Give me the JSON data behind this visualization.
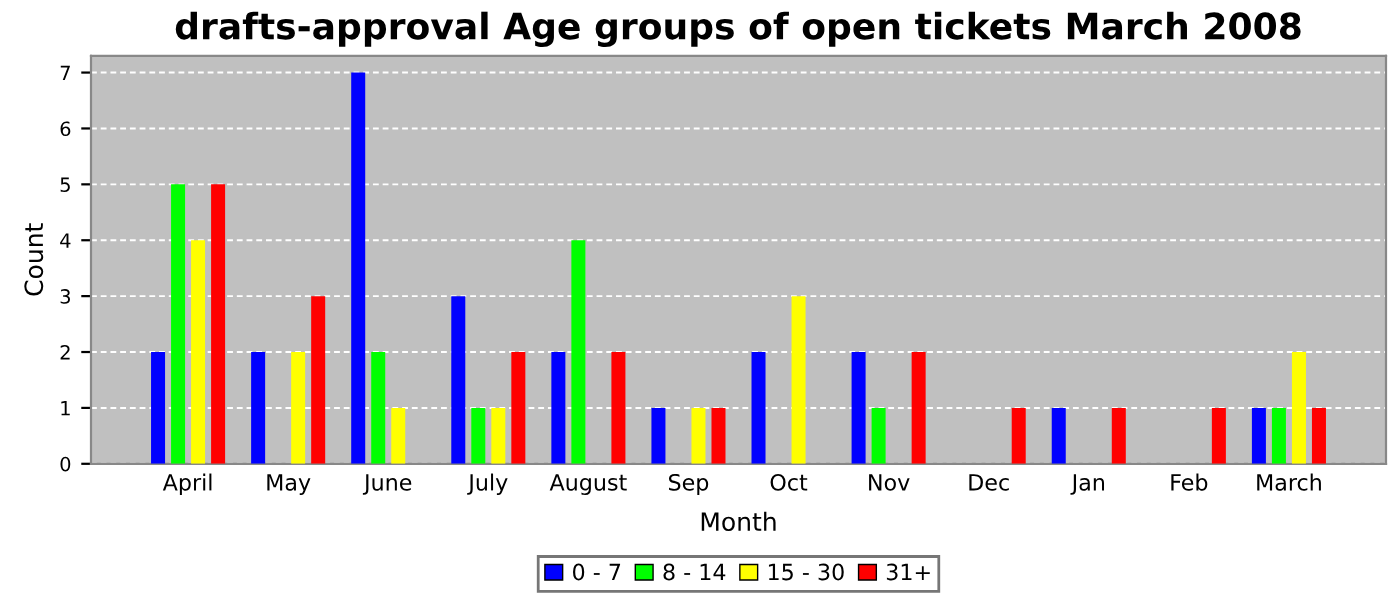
{
  "chart_data": {
    "type": "bar",
    "title": "drafts-approval Age groups of open tickets March 2008",
    "xlabel": "Month",
    "ylabel": "Count",
    "categories": [
      "April",
      "May",
      "June",
      "July",
      "August",
      "Sep",
      "Oct",
      "Nov",
      "Dec",
      "Jan",
      "Feb",
      "March"
    ],
    "series": [
      {
        "name": "0 - 7",
        "color": "#0000ff",
        "values": [
          2,
          2,
          7,
          3,
          2,
          1,
          2,
          2,
          0,
          1,
          0,
          1
        ]
      },
      {
        "name": "8 - 14",
        "color": "#00ff00",
        "values": [
          5,
          0,
          2,
          1,
          4,
          0,
          0,
          1,
          0,
          0,
          0,
          1
        ]
      },
      {
        "name": "15 - 30",
        "color": "#ffff00",
        "values": [
          4,
          2,
          1,
          1,
          0,
          1,
          3,
          0,
          0,
          0,
          0,
          2
        ]
      },
      {
        "name": "31+",
        "color": "#ff0000",
        "values": [
          5,
          3,
          0,
          2,
          2,
          1,
          0,
          2,
          1,
          1,
          1,
          1
        ]
      }
    ],
    "ylim": [
      0,
      7.3
    ],
    "yticks": [
      0,
      1,
      2,
      3,
      4,
      5,
      6,
      7
    ],
    "grid": "y",
    "legend": "bottom"
  }
}
